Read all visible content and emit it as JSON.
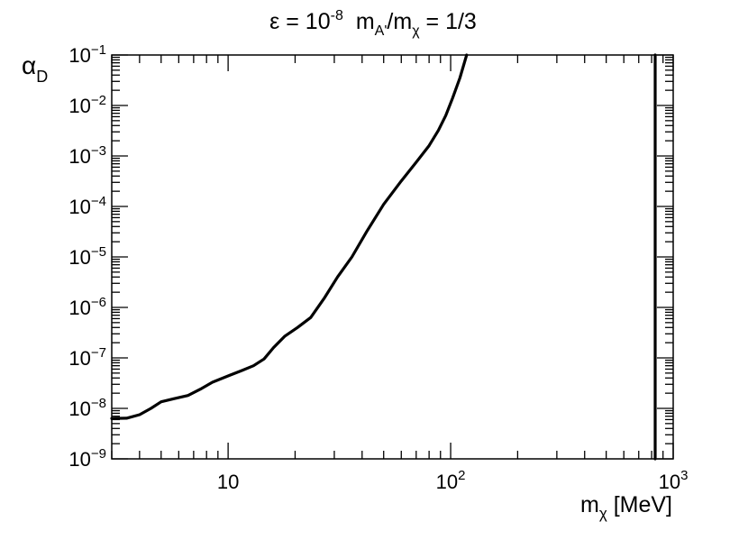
{
  "chart_data": {
    "type": "line",
    "title": {
      "part1": "ε = 10",
      "part1_sup": "-8",
      "part2": "m",
      "part2_sub": "A'",
      "part3": "/m",
      "part3_sub": "χ",
      "part4": " = 1/3"
    },
    "ylabel": {
      "main": "α",
      "sub": "D"
    },
    "xlabel": {
      "main": "m",
      "sub": "χ",
      "unit": " [MeV]"
    },
    "x_scale": "log",
    "y_scale": "log",
    "xlim": [
      3,
      1000
    ],
    "ylim": [
      1e-09,
      0.1
    ],
    "x_tick_labels": [
      {
        "value": 10,
        "base": "10",
        "exp": ""
      },
      {
        "value": 100,
        "base": "10",
        "exp": "2"
      },
      {
        "value": 1000,
        "base": "10",
        "exp": "3"
      }
    ],
    "y_tick_labels": [
      {
        "value": 1e-09,
        "base": "10",
        "exp": "−9"
      },
      {
        "value": 1e-08,
        "base": "10",
        "exp": "−8"
      },
      {
        "value": 1e-07,
        "base": "10",
        "exp": "−7"
      },
      {
        "value": 1e-06,
        "base": "10",
        "exp": "−6"
      },
      {
        "value": 1e-05,
        "base": "10",
        "exp": "−5"
      },
      {
        "value": 0.0001,
        "base": "10",
        "exp": "−4"
      },
      {
        "value": 0.001,
        "base": "10",
        "exp": "−3"
      },
      {
        "value": 0.01,
        "base": "10",
        "exp": "−2"
      },
      {
        "value": 0.1,
        "base": "10",
        "exp": "−1"
      }
    ],
    "grid": false,
    "series": [
      {
        "x": [
          3.0,
          3.5,
          4.0,
          4.5,
          5.0,
          5.7,
          6.6,
          7.5,
          8.5,
          10.0,
          11.5,
          13.0,
          14.5,
          16.0,
          18.0,
          20.5,
          23.5,
          27.0,
          31.0,
          36.0,
          42.0,
          50.0,
          60.0,
          70.0,
          80.0,
          88.0,
          95.0,
          102.0,
          110.0,
          118.0
        ],
        "y": [
          6.3e-09,
          6.4e-09,
          7.5e-09,
          1e-08,
          1.35e-08,
          1.55e-08,
          1.8e-08,
          2.4e-08,
          3.3e-08,
          4.4e-08,
          5.6e-08,
          7e-08,
          9.5e-08,
          1.6e-07,
          2.7e-07,
          4e-07,
          6.3e-07,
          1.5e-06,
          4e-06,
          1e-05,
          3.2e-05,
          0.00011,
          0.00032,
          0.00075,
          0.0016,
          0.0032,
          0.0063,
          0.014,
          0.035,
          0.1
        ]
      },
      {
        "x": [
          830,
          830
        ],
        "y": [
          1e-09,
          0.1
        ]
      }
    ]
  }
}
